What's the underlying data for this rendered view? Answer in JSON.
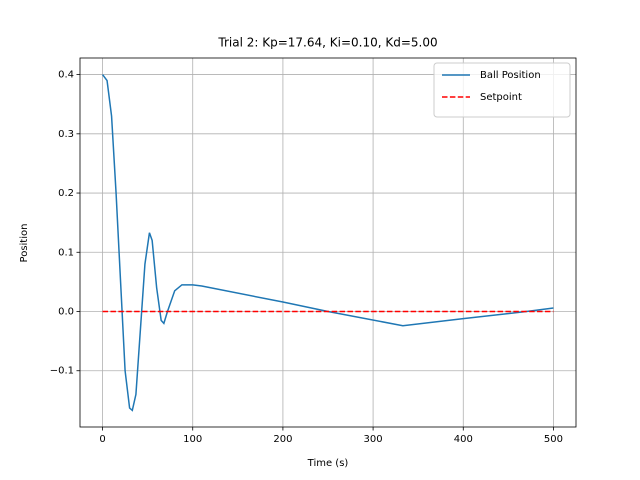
{
  "chart_data": {
    "type": "line",
    "title": "Trial 2: Kp=17.64, Ki=0.10, Kd=5.00",
    "x_label": "Time (s)",
    "y_label": "Position",
    "series": [
      {
        "name": "Ball Position",
        "color": "#1f77b4",
        "linestyle": "solid",
        "x": [
          0,
          5,
          10,
          15,
          20,
          25,
          30,
          33,
          37,
          42,
          47,
          52,
          55,
          60,
          65,
          68,
          72,
          80,
          88,
          100,
          110,
          200,
          250,
          333,
          400,
          470,
          500
        ],
        "values": [
          0.4,
          0.39,
          0.33,
          0.2,
          0.05,
          -0.1,
          -0.163,
          -0.167,
          -0.14,
          -0.03,
          0.08,
          0.133,
          0.12,
          0.04,
          -0.015,
          -0.02,
          0.0,
          0.035,
          0.045,
          0.045,
          0.043,
          0.016,
          0.0,
          -0.024,
          -0.012,
          0.0,
          0.006
        ]
      },
      {
        "name": "Setpoint",
        "color": "#ff0000",
        "linestyle": "dashed",
        "x": [
          0,
          500
        ],
        "values": [
          0,
          0
        ]
      }
    ],
    "xlim": [
      -25,
      525
    ],
    "xticks": [
      0,
      100,
      200,
      300,
      400,
      500
    ],
    "ylim": [
      -0.195,
      0.428
    ],
    "yticks": [
      {
        "value": -0.1,
        "label": "−0.1"
      },
      {
        "value": 0,
        "label": "0.0"
      },
      0.1,
      0.2,
      0.3,
      0.4
    ],
    "grid": true,
    "legend": "upper right"
  }
}
